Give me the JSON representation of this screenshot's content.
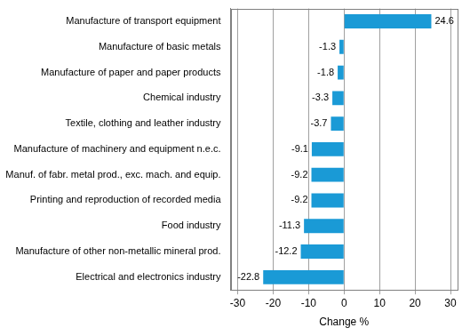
{
  "chart_data": {
    "type": "bar",
    "orientation": "horizontal",
    "x_label": "Change %",
    "categories": [
      "Manufacture of transport equipment",
      "Manufacture of basic metals",
      "Manufacture of paper and paper products",
      "Chemical industry",
      "Textile, clothing and leather industry",
      "Manufacture of machinery and equipment n.e.c.",
      "Manuf. of fabr. metal prod., exc. mach. and equip.",
      "Printing and reproduction of recorded media",
      "Food industry",
      "Manufacture of other non-metallic mineral prod.",
      "Electrical and electronics industry"
    ],
    "values": [
      24.6,
      -1.3,
      -1.8,
      -3.3,
      -3.7,
      -9.1,
      -9.2,
      -9.2,
      -11.3,
      -12.2,
      -22.8
    ],
    "color": "#1a9ad6",
    "xlim": [
      -32,
      32
    ],
    "xticks": [
      -30,
      -20,
      -10,
      0,
      10,
      20,
      30
    ],
    "grid": true,
    "data_labels": true
  }
}
